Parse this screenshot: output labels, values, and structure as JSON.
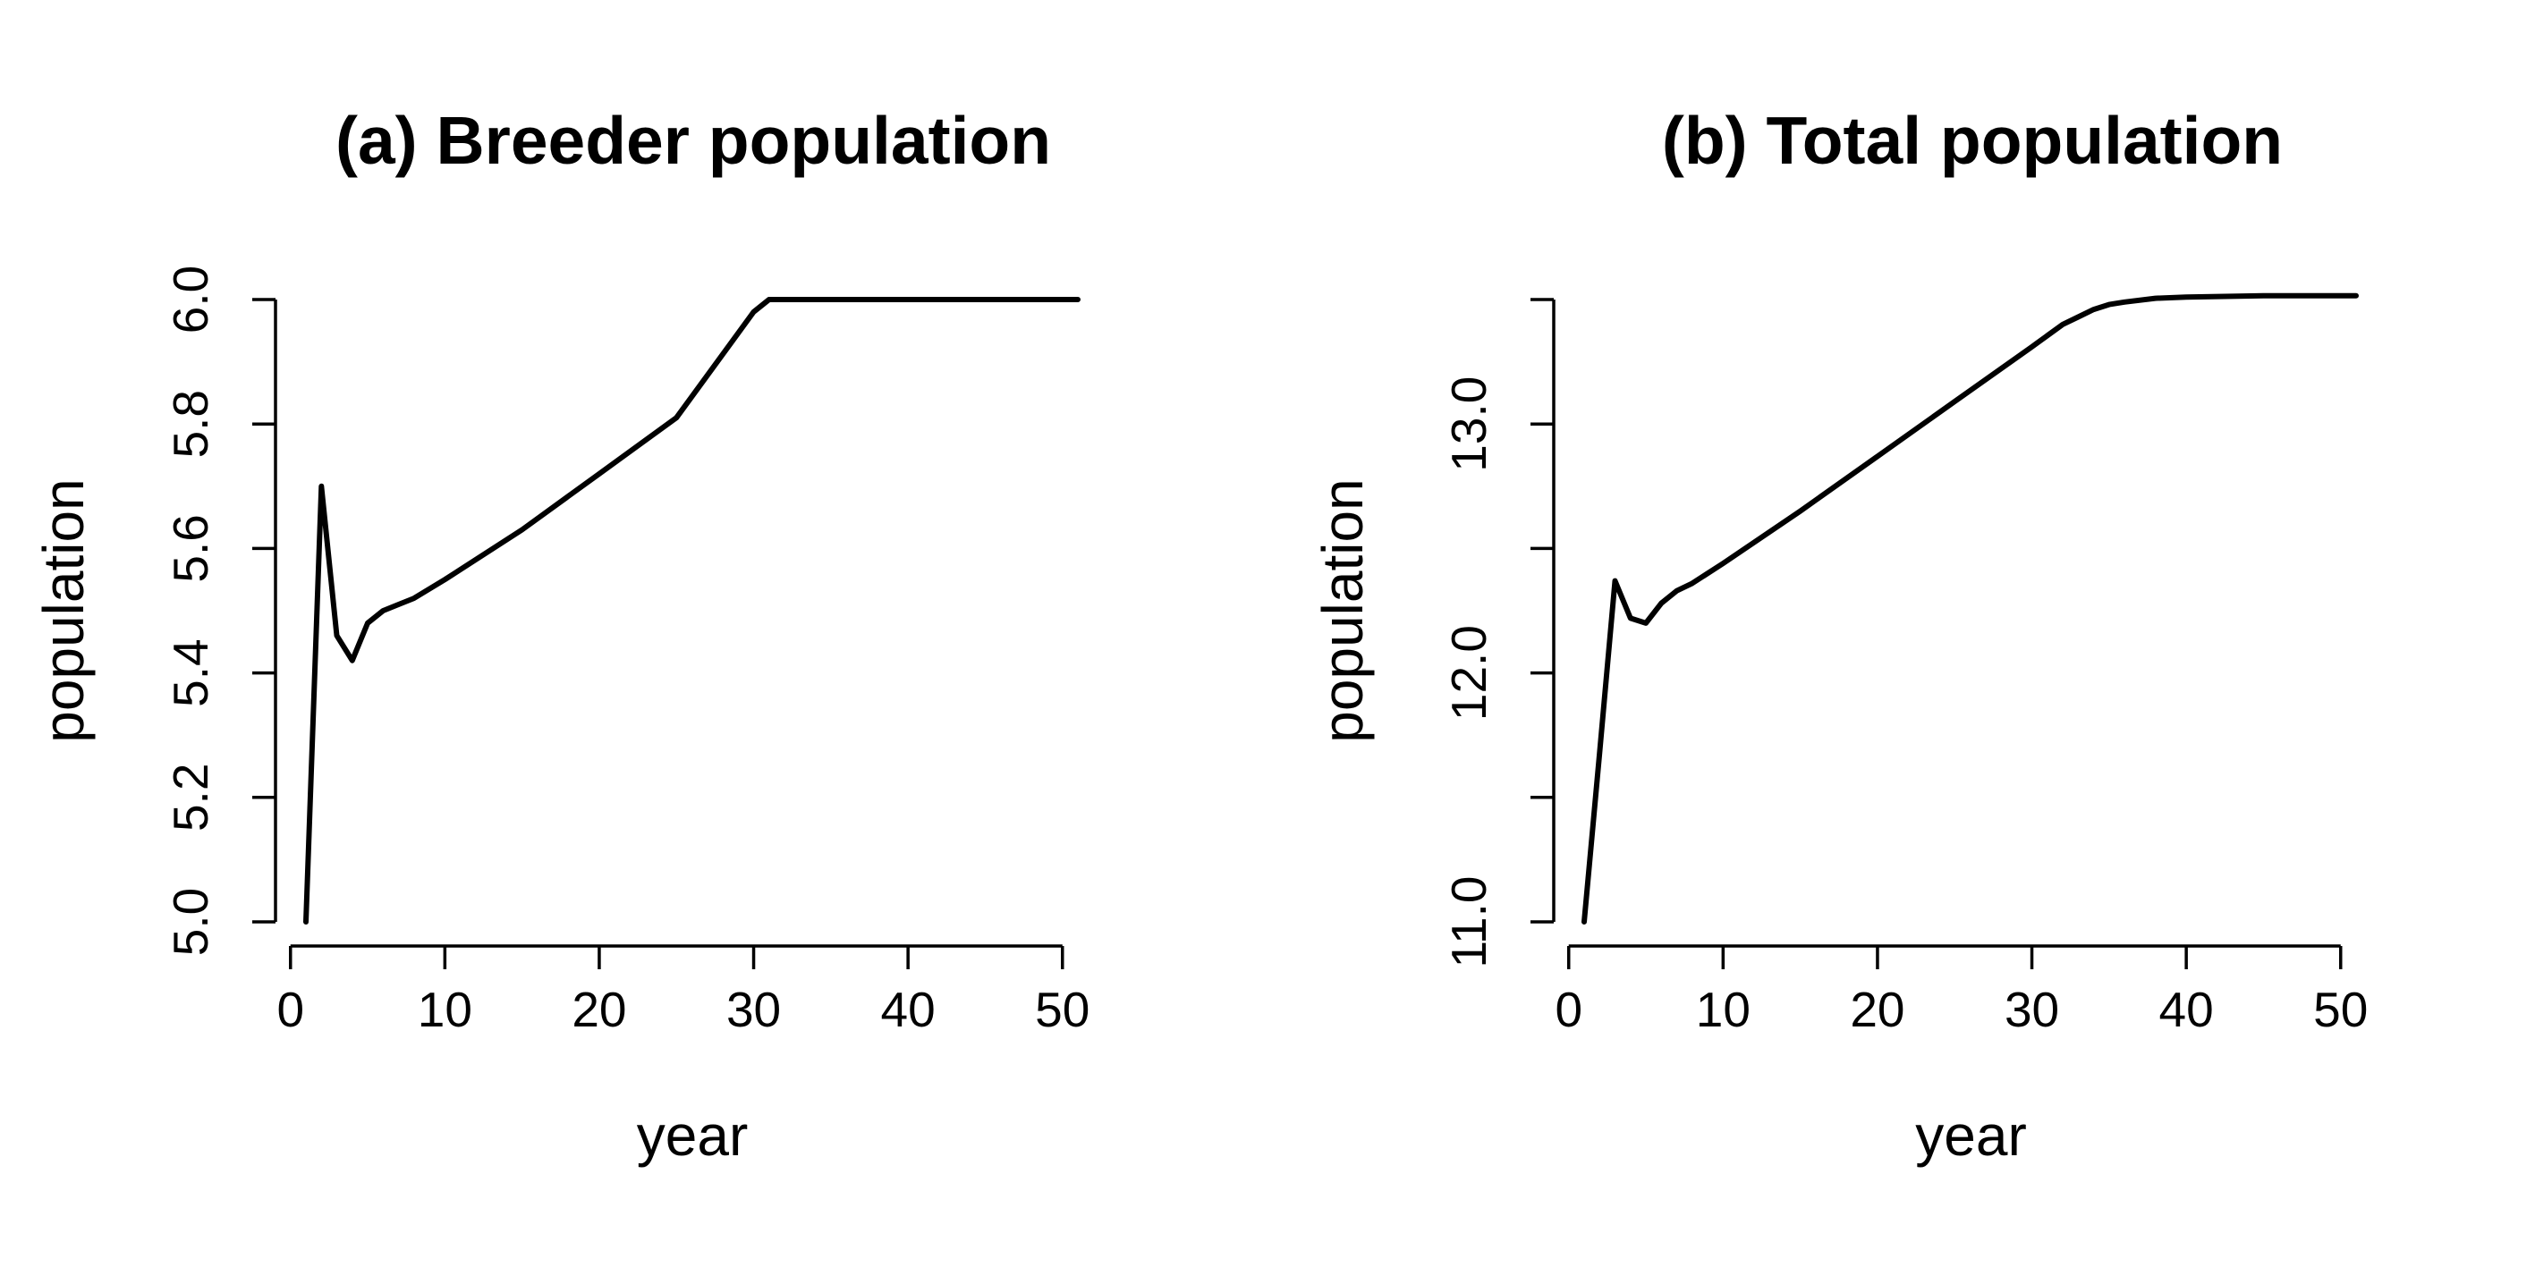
{
  "chart_data": [
    {
      "type": "line",
      "title": "(a) Breeder population",
      "xlabel": "year",
      "ylabel": "population",
      "xlim": [
        1,
        51
      ],
      "ylim": [
        5.0,
        6.0
      ],
      "xticks": [
        0,
        10,
        20,
        30,
        40,
        50
      ],
      "yticks": [
        5.0,
        5.2,
        5.4,
        5.6,
        5.8,
        6.0
      ],
      "xtick_labels": [
        "0",
        "10",
        "20",
        "30",
        "40",
        "50"
      ],
      "ytick_labels": [
        "5.0",
        "5.2",
        "5.4",
        "5.6",
        "5.8",
        "6.0"
      ],
      "grid": false,
      "series": [
        {
          "x": [
            1,
            2,
            3,
            4,
            5,
            6,
            7,
            8,
            10,
            15,
            20,
            25,
            30,
            31,
            32,
            35,
            40,
            45,
            51
          ],
          "y": [
            5.0,
            5.7,
            5.46,
            5.42,
            5.48,
            5.5,
            5.51,
            5.52,
            5.55,
            5.63,
            5.72,
            5.81,
            5.98,
            6.0,
            6.0,
            6.0,
            6.0,
            6.0,
            6.0
          ]
        }
      ]
    },
    {
      "type": "line",
      "title": "(b) Total population",
      "xlabel": "year",
      "ylabel": "population",
      "xlim": [
        1,
        51
      ],
      "ylim": [
        11.0,
        13.5
      ],
      "xticks": [
        0,
        10,
        20,
        30,
        40,
        50
      ],
      "yticks": [
        11.0,
        11.5,
        12.0,
        12.5,
        13.0,
        13.5
      ],
      "xtick_labels": [
        "0",
        "10",
        "20",
        "30",
        "40",
        "50"
      ],
      "ytick_labels": [
        "11.0",
        "",
        "12.0",
        "",
        "13.0",
        ""
      ],
      "grid": false,
      "series": [
        {
          "x": [
            1,
            2,
            3,
            4,
            5,
            6,
            7,
            8,
            10,
            15,
            20,
            25,
            30,
            32,
            33,
            34,
            35,
            36,
            38,
            40,
            45,
            51
          ],
          "y": [
            11.0,
            11.68,
            12.37,
            12.22,
            12.2,
            12.28,
            12.33,
            12.36,
            12.44,
            12.65,
            12.87,
            13.09,
            13.31,
            13.4,
            13.43,
            13.46,
            13.48,
            13.49,
            13.505,
            13.51,
            13.515,
            13.515
          ]
        }
      ]
    }
  ]
}
